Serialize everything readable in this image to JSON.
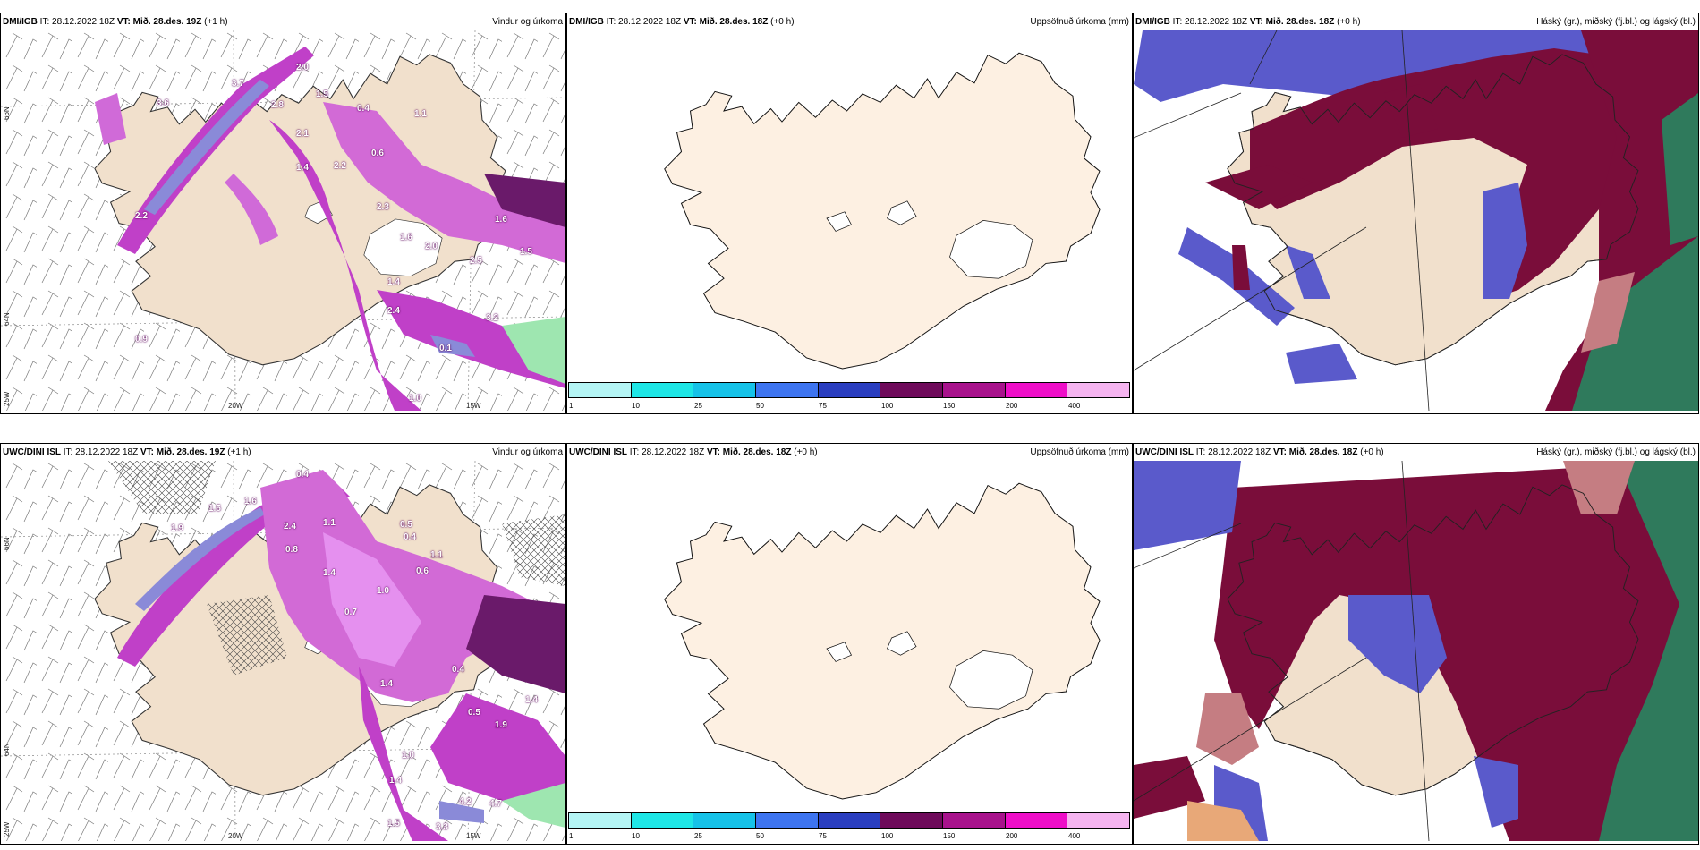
{
  "panels": [
    {
      "model": "DMI/IGB",
      "it_label": "IT:",
      "it": "28.12.2022 18Z",
      "vt_label": "VT:",
      "vt": "Mið. 28.des. 19Z",
      "lead": "(+1 h)",
      "product": "Vindur og úrkoma"
    },
    {
      "model": "DMI/IGB",
      "it_label": "IT:",
      "it": "28.12.2022 18Z",
      "vt_label": "VT:",
      "vt": "Mið. 28.des. 18Z",
      "lead": "(+0 h)",
      "product": "Uppsöfnuð úrkoma (mm)"
    },
    {
      "model": "DMI/IGB",
      "it_label": "IT:",
      "it": "28.12.2022 18Z",
      "vt_label": "VT:",
      "vt": "Mið. 28.des. 18Z",
      "lead": "(+0 h)",
      "product": "Háský (gr.), miðský (fj.bl.) og lágský (bl.)"
    },
    {
      "model": "UWC/DINI ISL",
      "it_label": "IT:",
      "it": "28.12.2022 18Z",
      "vt_label": "VT:",
      "vt": "Mið. 28.des. 19Z",
      "lead": "(+1 h)",
      "product": "Vindur og úrkoma"
    },
    {
      "model": "UWC/DINI ISL",
      "it_label": "IT:",
      "it": "28.12.2022 18Z",
      "vt_label": "VT:",
      "vt": "Mið. 28.des. 18Z",
      "lead": "(+0 h)",
      "product": "Uppsöfnuð úrkoma (mm)"
    },
    {
      "model": "UWC/DINI ISL",
      "it_label": "IT:",
      "it": "28.12.2022 18Z",
      "vt_label": "VT:",
      "vt": "Mið. 28.des. 18Z",
      "lead": "(+0 h)",
      "product": "Háský (gr.), miðský (fj.bl.) og lágský (bl.)"
    }
  ],
  "grid_labels": {
    "lat_66": "66N",
    "lat_64": "64N",
    "lon_25": "25W",
    "lon_20": "20W",
    "lon_15": "15W"
  },
  "colorbar": {
    "ticks": [
      "1",
      "10",
      "25",
      "50",
      "75",
      "100",
      "150",
      "200",
      "400"
    ],
    "colors": [
      "#b4f5f5",
      "#1ee6e6",
      "#16c2e8",
      "#3d74f0",
      "#2a3ec0",
      "#6e0a5a",
      "#a8128c",
      "#ee0ec8",
      "#f5b4f0"
    ]
  },
  "precip_values_top": [
    "3.6",
    "2.2",
    "3.7",
    "2.0",
    "2.8",
    "1.5",
    "2.1",
    "0.4",
    "1.1",
    "1.4",
    "2.2",
    "0.6",
    "2.3",
    "1.6",
    "2.0",
    "2.5",
    "1.4",
    "2.4",
    "3.2",
    "0.1",
    "1.0",
    "0.9",
    "1.6",
    "1.5"
  ],
  "precip_values_bottom": [
    "0.4",
    "1.6",
    "1.5",
    "1.9",
    "2.4",
    "1.1",
    "0.5",
    "0.4",
    "0.8",
    "1.4",
    "0.6",
    "1.1",
    "0.7",
    "1.0",
    "0.4",
    "1.4",
    "0.5",
    "1.9",
    "1.4",
    "1.0",
    "1.4",
    "4.2",
    "4.7",
    "1.5",
    "3.3"
  ],
  "colors": {
    "land": "#f1e0cc",
    "land_accum": "#fdf0e2",
    "precip_light": "#e591f0",
    "precip_mid": "#c040c8",
    "precip_dark": "#6a1a6a",
    "high_cloud": "#2f7a5c",
    "mid_cloud": "#7a0d3a",
    "low_cloud": "#5a5acb"
  }
}
